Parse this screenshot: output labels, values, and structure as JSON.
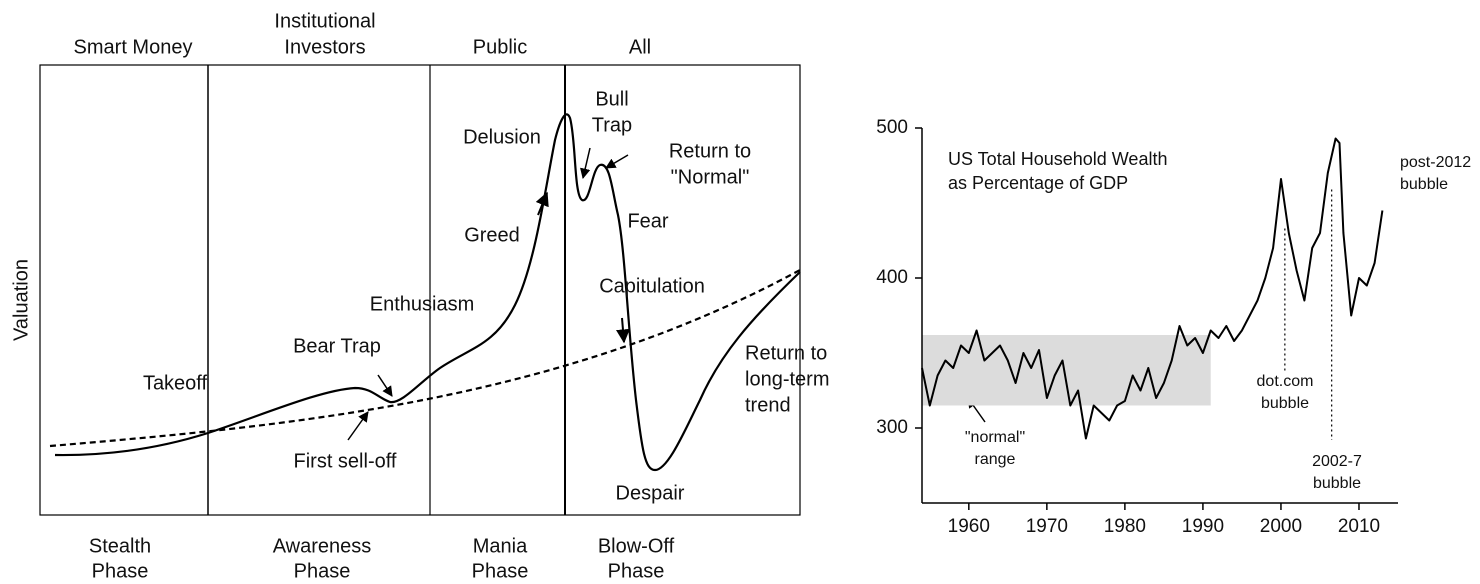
{
  "diagram": {
    "y_label": "Valuation",
    "groups": [
      [
        "Smart Money"
      ],
      [
        "Institutional",
        "Investors"
      ],
      [
        "Public"
      ],
      [
        "All"
      ]
    ],
    "phases": [
      [
        "Stealth",
        "Phase"
      ],
      [
        "Awareness",
        "Phase"
      ],
      [
        "Mania",
        "Phase"
      ],
      [
        "Blow-Off",
        "Phase"
      ]
    ],
    "labels": {
      "takeoff": [
        "Takeoff"
      ],
      "bear_trap": [
        "Bear Trap"
      ],
      "first_selloff": [
        "First sell-off"
      ],
      "enthusiasm": [
        "Enthusiasm"
      ],
      "greed": [
        "Greed"
      ],
      "delusion": [
        "Delusion"
      ],
      "bull_trap": [
        "Bull",
        "Trap"
      ],
      "return_normal": [
        "Return to",
        "\"Normal\""
      ],
      "fear": [
        "Fear"
      ],
      "capitulation": [
        "Capitulation"
      ],
      "despair": [
        "Despair"
      ],
      "return_trend": [
        "Return to",
        "long-term",
        "trend"
      ]
    }
  },
  "chart_data": {
    "type": "line",
    "title": [
      "US Total Household Wealth",
      "as Percentage of GDP"
    ],
    "x": [
      1954,
      1955,
      1956,
      1957,
      1958,
      1959,
      1960,
      1961,
      1962,
      1963,
      1964,
      1965,
      1966,
      1967,
      1968,
      1969,
      1970,
      1971,
      1972,
      1973,
      1974,
      1975,
      1976,
      1977,
      1978,
      1979,
      1980,
      1981,
      1982,
      1983,
      1984,
      1985,
      1986,
      1987,
      1988,
      1989,
      1990,
      1991,
      1992,
      1993,
      1994,
      1995,
      1996,
      1997,
      1998,
      1999,
      2000,
      2001,
      2002,
      2003,
      2004,
      2005,
      2006,
      2007,
      2007.5,
      2008,
      2009,
      2010,
      2011,
      2012,
      2013
    ],
    "series": [
      {
        "color": "#000000",
        "values": [
          340,
          315,
          335,
          345,
          340,
          355,
          350,
          365,
          345,
          350,
          355,
          345,
          330,
          350,
          340,
          352,
          320,
          335,
          345,
          315,
          325,
          293,
          315,
          310,
          305,
          315,
          318,
          335,
          325,
          340,
          320,
          330,
          345,
          368,
          355,
          360,
          350,
          365,
          360,
          368,
          358,
          365,
          375,
          385,
          400,
          420,
          466,
          430,
          405,
          385,
          420,
          430,
          470,
          493,
          490,
          430,
          375,
          400,
          395,
          410,
          445
        ]
      }
    ],
    "xlim": [
      1954,
      2015
    ],
    "ylim": [
      250,
      500
    ],
    "xticks": [
      1960,
      1970,
      1980,
      1990,
      2000,
      2010
    ],
    "yticks": [
      300,
      400,
      500
    ],
    "band": {
      "label": [
        "\"normal\"",
        "range"
      ],
      "x": [
        1954,
        1991
      ],
      "y": [
        315,
        362
      ],
      "color": "#dcdcdc"
    },
    "annotations": [
      {
        "text": [
          "post-2012",
          "bubble"
        ]
      },
      {
        "text": [
          "dot.com",
          "bubble"
        ],
        "x": 2000.5,
        "y": [
          338,
          433
        ]
      },
      {
        "text": [
          "2002-7",
          "bubble"
        ],
        "x": 2006.5,
        "y": [
          292,
          459
        ]
      }
    ]
  }
}
